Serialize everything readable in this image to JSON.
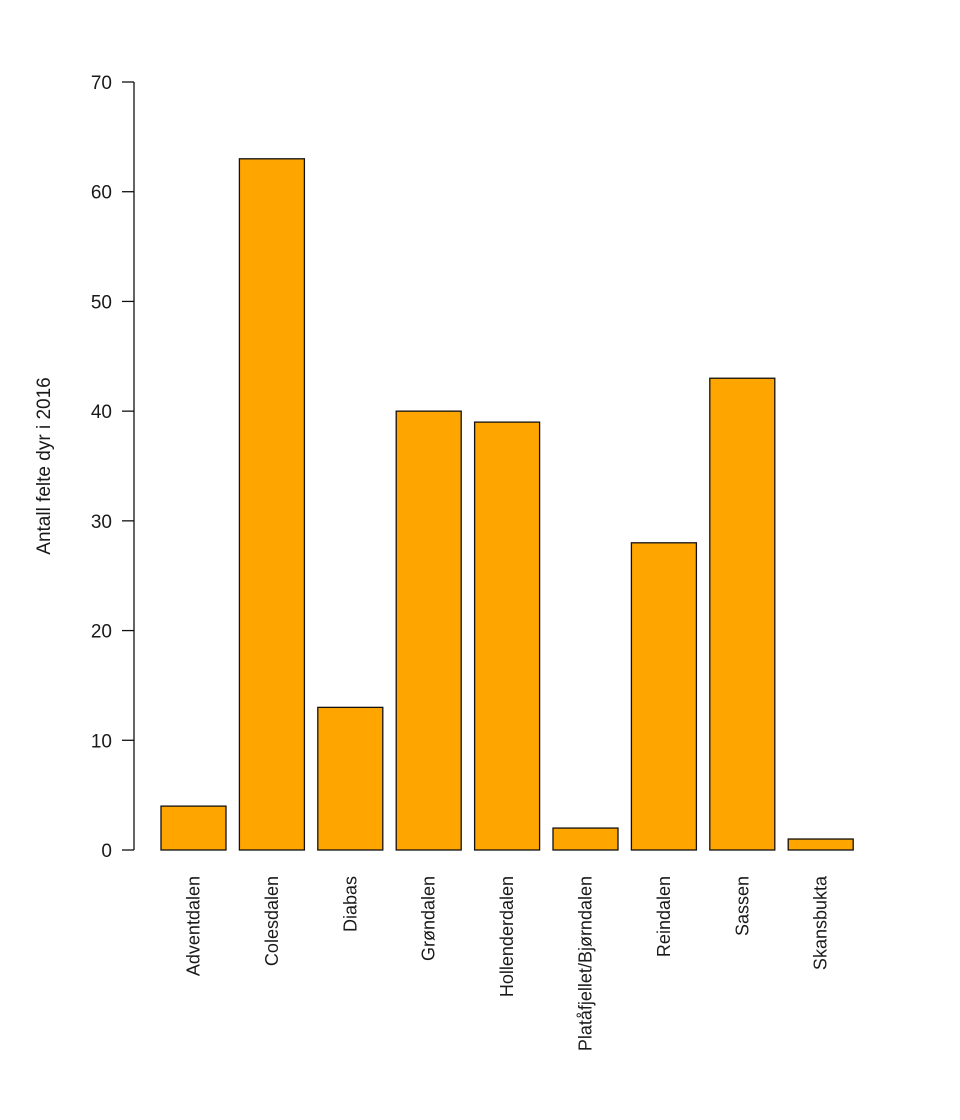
{
  "chart_data": {
    "type": "bar",
    "title": "",
    "xlabel": "",
    "ylabel": "Antall felte dyr i 2016",
    "categories": [
      "Adventdalen",
      "Colesdalen",
      "Diabas",
      "Grøndalen",
      "Hollenderdalen",
      "Platåfjellet/Bjørndalen",
      "Reindalen",
      "Sassen",
      "Skansbukta"
    ],
    "values": [
      4,
      63,
      13,
      40,
      39,
      2,
      28,
      43,
      1
    ],
    "ylim": [
      0,
      70
    ],
    "yticks": [
      0,
      10,
      20,
      30,
      40,
      50,
      60,
      70
    ],
    "bar_color": "#FFA500",
    "grid": false,
    "legend": "none"
  }
}
